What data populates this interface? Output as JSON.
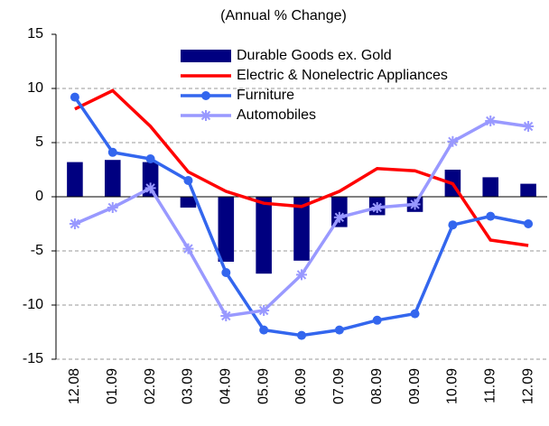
{
  "chart_data": {
    "type": "bar_line",
    "title": "(Annual % Change)",
    "categories": [
      "12.08",
      "01.09",
      "02.09",
      "03.09",
      "04.09",
      "05.09",
      "06.09",
      "07.09",
      "08.09",
      "09.09",
      "10.09",
      "11.09",
      "12.09"
    ],
    "series": [
      {
        "name": "Durable Goods ex. Gold",
        "type": "bar",
        "color": "#000080",
        "values": [
          3.2,
          3.4,
          3.2,
          -1.0,
          -6.0,
          -7.1,
          -5.9,
          -2.8,
          -1.7,
          -1.4,
          2.5,
          1.8,
          1.2
        ]
      },
      {
        "name": "Electric & Nonelectric Appliances",
        "type": "line",
        "color": "#ff0000",
        "values": [
          8.1,
          9.8,
          6.5,
          2.3,
          0.5,
          -0.6,
          -0.9,
          0.5,
          2.6,
          2.4,
          1.2,
          -4.0,
          -4.5
        ]
      },
      {
        "name": "Furniture",
        "type": "line",
        "marker": "circle",
        "color": "#3366ee",
        "values": [
          9.2,
          4.1,
          3.5,
          1.5,
          -7.0,
          -12.3,
          -12.8,
          -12.3,
          -11.4,
          -10.8,
          -2.6,
          -1.8,
          -2.5
        ]
      },
      {
        "name": "Automobiles",
        "type": "line",
        "marker": "star",
        "color": "#9999ff",
        "values": [
          -2.5,
          -1.0,
          0.8,
          -4.8,
          -11.0,
          -10.5,
          -7.2,
          -1.9,
          -1.0,
          -0.7,
          5.1,
          7.0,
          6.5
        ]
      }
    ],
    "ylim": [
      -15,
      15
    ],
    "yticks": [
      -15,
      -10,
      -5,
      0,
      5,
      10,
      15
    ],
    "grid": true
  }
}
